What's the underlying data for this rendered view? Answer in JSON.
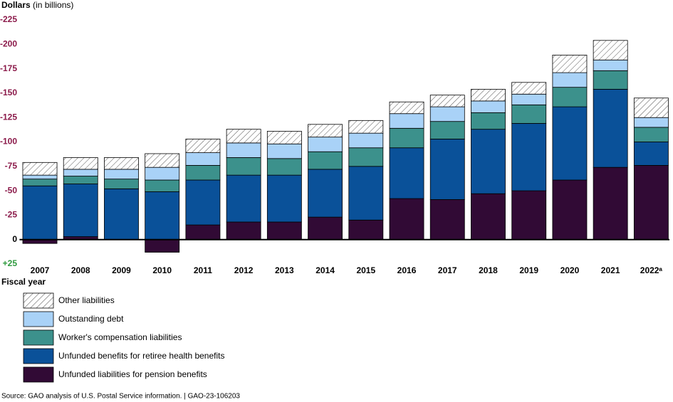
{
  "chart_data": {
    "type": "stacked_bar",
    "y_label": "Dollars",
    "y_label_unit": "(in billions)",
    "x_label": "Fiscal year",
    "source": "Source: GAO analysis of U.S. Postal Service information.  |  GAO-23-106203",
    "categories": [
      "2007",
      "2008",
      "2009",
      "2010",
      "2011",
      "2012",
      "2013",
      "2014",
      "2015",
      "2016",
      "2017",
      "2018",
      "2019",
      "2020",
      "2021",
      "2022ᵃ"
    ],
    "ylim": [
      25,
      -225
    ],
    "yticks": [
      -225,
      -200,
      -175,
      -150,
      -125,
      -100,
      -75,
      -50,
      -25,
      0,
      {
        "value": 25,
        "label": "+25"
      }
    ],
    "series": [
      {
        "name": "Unfunded liabilities for pension benefits",
        "color": "#310a35",
        "values": [
          4,
          -3,
          0,
          13,
          -15,
          -18,
          -18,
          -23,
          -20,
          -42,
          -41,
          -47,
          -50,
          -61,
          -74,
          -76
        ]
      },
      {
        "name": "Unfunded benefits for retiree health benefits",
        "color": "#0a5199",
        "values": [
          -55,
          -54,
          -52,
          -49,
          -46,
          -48,
          -48,
          -49,
          -55,
          -52,
          -62,
          -66,
          -69,
          -75,
          -80,
          -24
        ]
      },
      {
        "name": "Worker's compensation liabilities",
        "color": "#3c918c",
        "values": [
          -7,
          -8,
          -10,
          -12,
          -15,
          -18,
          -17,
          -18,
          -19,
          -20,
          -18,
          -17,
          -19,
          -20,
          -19,
          -15
        ]
      },
      {
        "name": "Outstanding debt",
        "color": "#a9d2f7",
        "values": [
          -4,
          -7,
          -10,
          -13,
          -13,
          -15,
          -15,
          -15,
          -15,
          -15,
          -15,
          -12,
          -11,
          -15,
          -11,
          -10
        ]
      },
      {
        "name": "Other liabilities",
        "color": "#ffffff",
        "hatch": true,
        "values": [
          -13,
          -12,
          -12,
          -14,
          -14,
          -14,
          -13,
          -13,
          -13,
          -12,
          -12,
          -12,
          -12,
          -18,
          -20,
          -20
        ]
      }
    ]
  }
}
